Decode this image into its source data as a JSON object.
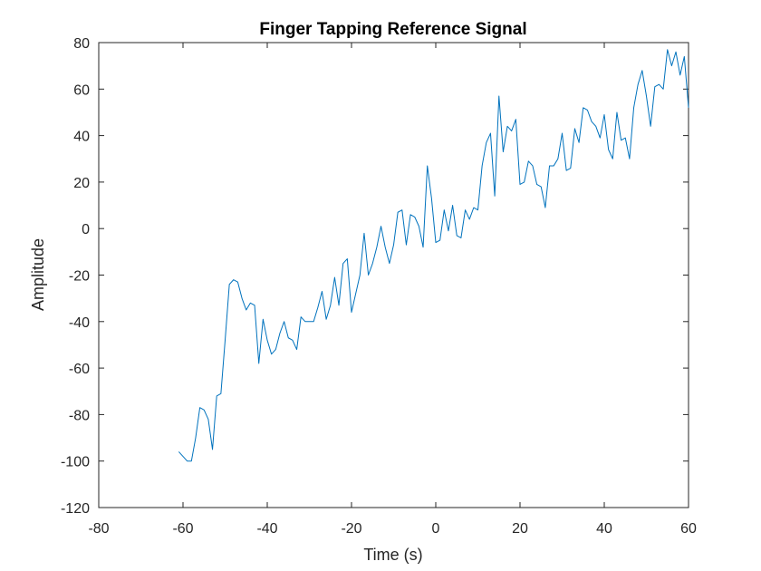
{
  "chart_data": {
    "type": "line",
    "title": "Finger Tapping Reference Signal",
    "xlabel": "Time (s)",
    "ylabel": "Amplitude",
    "xlim": [
      -80,
      60
    ],
    "ylim": [
      -120,
      80
    ],
    "xticks": [
      -80,
      -60,
      -40,
      -20,
      0,
      20,
      40,
      60
    ],
    "yticks": [
      -120,
      -100,
      -80,
      -60,
      -40,
      -20,
      0,
      20,
      40,
      60,
      80
    ],
    "grid": false,
    "legend": "none",
    "line_color": "#0072bd",
    "series": [
      {
        "x": [
          -61,
          -60,
          -59,
          -58,
          -57,
          -56,
          -55,
          -54,
          -53,
          -52,
          -51,
          -50,
          -49,
          -48,
          -47,
          -46,
          -45,
          -44,
          -43,
          -42,
          -41,
          -40,
          -39,
          -38,
          -37,
          -36,
          -35,
          -34,
          -33,
          -32,
          -31,
          -30,
          -29,
          -28,
          -27,
          -26,
          -25,
          -24,
          -23,
          -22,
          -21,
          -20,
          -19,
          -18,
          -17,
          -16,
          -15,
          -14,
          -13,
          -12,
          -11,
          -10,
          -9,
          -8,
          -7,
          -6,
          -5,
          -4,
          -3,
          -2,
          -1,
          0,
          1,
          2,
          3,
          4,
          5,
          6,
          7,
          8,
          9,
          10,
          11,
          12,
          13,
          14,
          15,
          16,
          17,
          18,
          19,
          20,
          21,
          22,
          23,
          24,
          25,
          26,
          27,
          28,
          29,
          30,
          31,
          32,
          33,
          34,
          35,
          36,
          37,
          38,
          39,
          40,
          41,
          42,
          43,
          44,
          45,
          46,
          47,
          48,
          49,
          50,
          51,
          52,
          53,
          54,
          55,
          56,
          57,
          58,
          59,
          60
        ],
        "values": [
          -96,
          -98,
          -100,
          -100,
          -90,
          -77,
          -78,
          -82,
          -95,
          -72,
          -71,
          -48,
          -24,
          -22,
          -23,
          -30,
          -35,
          -32,
          -33,
          -58,
          -39,
          -48,
          -54,
          -52,
          -45,
          -40,
          -47,
          -48,
          -52,
          -38,
          -40,
          -40,
          -40,
          -34,
          -27,
          -39,
          -33,
          -21,
          -33,
          -15,
          -13,
          -36,
          -28,
          -20,
          -2,
          -20,
          -15,
          -8,
          1,
          -8,
          -15,
          -7,
          7,
          8,
          -7,
          6,
          5,
          1,
          -8,
          27,
          13,
          -6,
          -5,
          8,
          -1,
          10,
          -3,
          -4,
          8,
          4,
          9,
          8,
          27,
          37,
          41,
          14,
          57,
          33,
          44,
          42,
          47,
          19,
          20,
          29,
          27,
          19,
          18,
          9,
          27,
          27,
          30,
          41,
          25,
          26,
          43,
          37,
          52,
          51,
          46,
          44,
          39,
          49,
          34,
          30,
          50,
          38,
          39,
          30,
          52,
          62,
          68,
          57,
          44,
          61,
          62,
          60,
          77,
          70,
          76,
          66,
          74,
          52
        ]
      }
    ]
  }
}
